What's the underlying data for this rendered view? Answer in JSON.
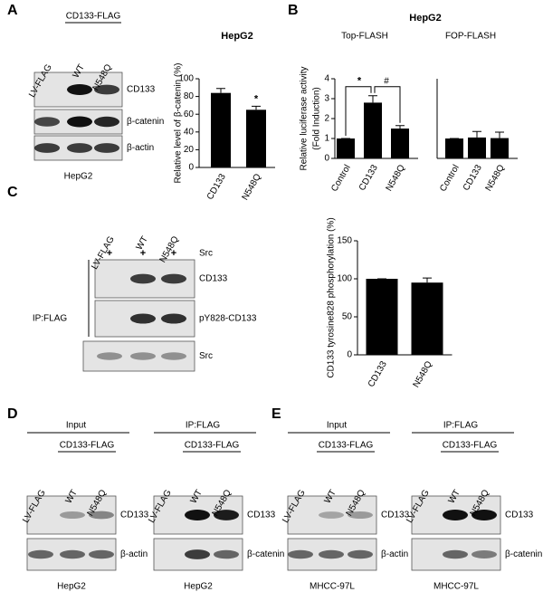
{
  "panel_labels": [
    "A",
    "B",
    "C",
    "D",
    "E"
  ],
  "chart_data": [
    {
      "type": "bar",
      "title": "HepG2",
      "ylabel": "Relative level of β-catenin (%)",
      "categories": [
        "CD133",
        "N548Q"
      ],
      "values": [
        84,
        65
      ],
      "errors": [
        5,
        4
      ],
      "color": "#000000",
      "ylim": [
        0,
        100
      ],
      "yticks": [
        0,
        20,
        40,
        60,
        80,
        100
      ],
      "annotations": [
        "*"
      ]
    },
    {
      "type": "bar",
      "title": "HepG2",
      "subtitle": "Top-FLASH",
      "ylabel": [
        "Relative luciferase activity",
        "(Fold Induction)"
      ],
      "categories": [
        "Control",
        "CD133",
        "N548Q"
      ],
      "values": [
        1,
        2.8,
        1.5
      ],
      "errors": [
        0,
        0.35,
        0.15
      ],
      "color": "#000000",
      "ylim": [
        0,
        4
      ],
      "yticks": [
        0,
        1,
        2,
        3,
        4
      ],
      "annotations": [
        "*",
        "#"
      ]
    },
    {
      "type": "bar",
      "subtitle": "FOP-FLASH",
      "categories": [
        "Control",
        "CD133",
        "N548Q"
      ],
      "values": [
        1,
        1.05,
        1.02
      ],
      "errors": [
        0,
        0.3,
        0.3
      ],
      "color": "#000000",
      "ylim": [
        0,
        4
      ]
    },
    {
      "type": "bar",
      "ylabel": "CD133 tyrosine828 phosphorylation (%)",
      "categories": [
        "CD133",
        "N548Q"
      ],
      "values": [
        100,
        95
      ],
      "errors": [
        0,
        6
      ],
      "color": "#000000",
      "ylim": [
        0,
        150
      ],
      "yticks": [
        0,
        50,
        100,
        150
      ]
    }
  ],
  "blots": [
    {
      "group": "CD133-FLAG",
      "lanes": [
        "LV-FLAG",
        "WT",
        "N548Q"
      ],
      "rows": [
        "CD133",
        "β-catenin",
        "β-actin"
      ],
      "caption": "HepG2"
    },
    {
      "lanes": [
        "LV-FLAG",
        "WT",
        "N548Q"
      ],
      "treatment": "Src",
      "marks": [
        "+",
        "+",
        "+"
      ],
      "ip": "IP:FLAG",
      "rows": [
        "CD133",
        "pY828-CD133",
        "Src"
      ]
    },
    {
      "header": "Input",
      "group": "CD133-FLAG",
      "lanes": [
        "LV-FLAG",
        "WT",
        "N548Q"
      ],
      "rows": [
        "CD133",
        "β-actin"
      ],
      "caption": "HepG2"
    },
    {
      "header": "IP:FLAG",
      "group": "CD133-FLAG",
      "lanes": [
        "LV-FLAG",
        "WT",
        "N548Q"
      ],
      "rows": [
        "CD133",
        "β-catenin"
      ],
      "caption": "HepG2"
    },
    {
      "header": "Input",
      "group": "CD133-FLAG",
      "lanes": [
        "LV-FLAG",
        "WT",
        "N548Q"
      ],
      "rows": [
        "CD133",
        "β-actin"
      ],
      "caption": "MHCC-97L"
    },
    {
      "header": "IP:FLAG",
      "group": "CD133-FLAG",
      "lanes": [
        "LV-FLAG",
        "WT",
        "N548Q"
      ],
      "rows": [
        "CD133",
        "β-catenin"
      ],
      "caption": "MHCC-97L"
    }
  ]
}
